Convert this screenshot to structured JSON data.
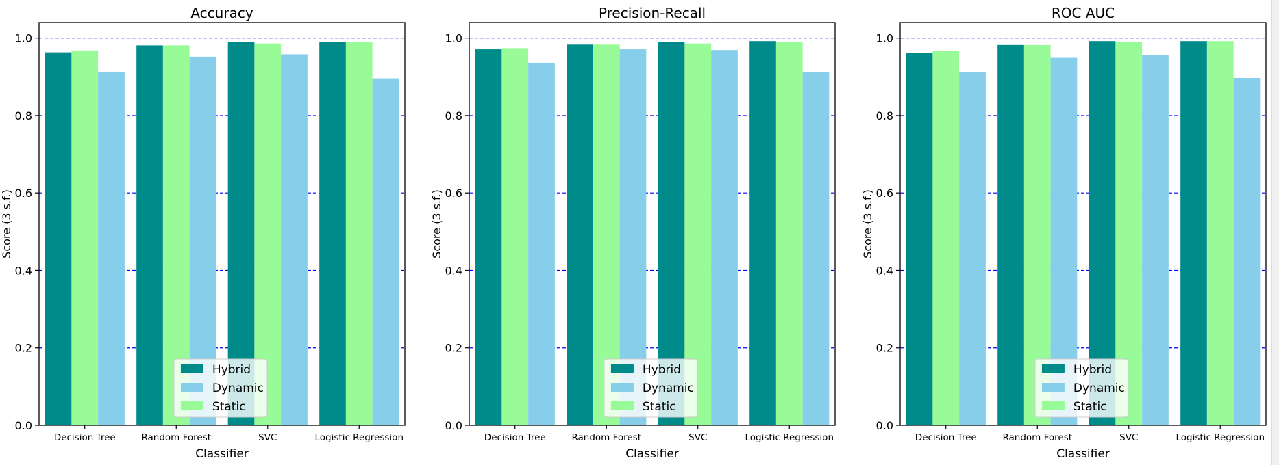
{
  "colors": {
    "hybrid": "#008B8B",
    "dynamic": "#87CEEB",
    "static": "#98FB98",
    "grid": "#0000ff",
    "axis": "#000000",
    "background": "#ffffff"
  },
  "legend_labels": [
    "Hybrid",
    "Dynamic",
    "Static"
  ],
  "chart_data": [
    {
      "type": "bar",
      "title": "Accuracy",
      "xlabel": "Classifier",
      "ylabel": "Score (3 s.f.)",
      "ylim": [
        0,
        1.04
      ],
      "yticks": [
        "0.0",
        "0.2",
        "0.4",
        "0.6",
        "0.8",
        "1.0"
      ],
      "grid": "y-dashed",
      "legend_position": "bottom-center",
      "categories": [
        "Decision Tree",
        "Random Forest",
        "SVC",
        "Logistic Regression"
      ],
      "series": [
        {
          "name": "Hybrid",
          "values": [
            0.963,
            0.981,
            0.99,
            0.99
          ]
        },
        {
          "name": "Static",
          "values": [
            0.968,
            0.981,
            0.986,
            0.99
          ]
        },
        {
          "name": "Dynamic",
          "values": [
            0.913,
            0.952,
            0.958,
            0.896
          ]
        }
      ]
    },
    {
      "type": "bar",
      "title": "Precision-Recall",
      "xlabel": "Classifier",
      "ylabel": "Score (3 s.f.)",
      "ylim": [
        0,
        1.04
      ],
      "yticks": [
        "0.0",
        "0.2",
        "0.4",
        "0.6",
        "0.8",
        "1.0"
      ],
      "grid": "y-dashed",
      "legend_position": "bottom-center",
      "categories": [
        "Decision Tree",
        "Random Forest",
        "SVC",
        "Logistic Regression"
      ],
      "series": [
        {
          "name": "Hybrid",
          "values": [
            0.971,
            0.983,
            0.99,
            0.992
          ]
        },
        {
          "name": "Static",
          "values": [
            0.974,
            0.983,
            0.986,
            0.99
          ]
        },
        {
          "name": "Dynamic",
          "values": [
            0.936,
            0.971,
            0.969,
            0.911
          ]
        }
      ]
    },
    {
      "type": "bar",
      "title": "ROC AUC",
      "xlabel": "Classifier",
      "ylabel": "Score (3 s.f.)",
      "ylim": [
        0,
        1.04
      ],
      "yticks": [
        "0.0",
        "0.2",
        "0.4",
        "0.6",
        "0.8",
        "1.0"
      ],
      "grid": "y-dashed",
      "legend_position": "bottom-center",
      "categories": [
        "Decision Tree",
        "Random Forest",
        "SVC",
        "Logistic Regression"
      ],
      "series": [
        {
          "name": "Hybrid",
          "values": [
            0.962,
            0.982,
            0.992,
            0.992
          ]
        },
        {
          "name": "Static",
          "values": [
            0.967,
            0.982,
            0.99,
            0.992
          ]
        },
        {
          "name": "Dynamic",
          "values": [
            0.911,
            0.949,
            0.956,
            0.897
          ]
        }
      ]
    }
  ]
}
